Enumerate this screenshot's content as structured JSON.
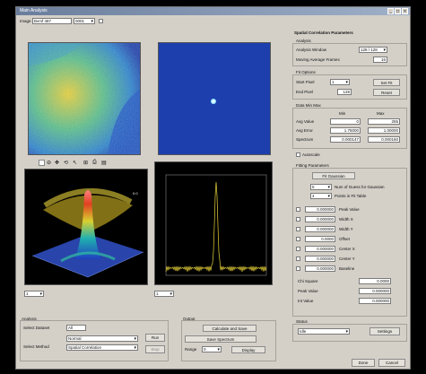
{
  "window": {
    "title": "Main Analysis"
  },
  "top": {
    "image_label": "Image",
    "image_name": "Bvmf 487",
    "frame_value": "0001",
    "info_text": ""
  },
  "spectrum": {
    "title": ""
  },
  "right": {
    "section_title": "Spatial Correlation Parameters",
    "analysis_title": "Analysis",
    "region_label": "Analysis Window",
    "region_value": "128 / 128",
    "moving_label": "Moving Average Frames",
    "moving_value": "16",
    "fit_title": "Fit Options",
    "fit_first_label": "Start Pixel",
    "fit_first_value": "1",
    "fit_count_label": "End Pixel",
    "fit_count_value": "128",
    "fit_btn1": "Set Fit",
    "fit_btn2": "Reset",
    "col_head_left": "Min",
    "col_head_right": "Max",
    "range_title": "Data Min Max",
    "rows": [
      {
        "label": "Avg Value",
        "min": "0",
        "max": "255"
      },
      {
        "label": "Avg Error",
        "min": "1.75000",
        "max": "1.00000"
      },
      {
        "label": "Spectrum",
        "min": "0.000147",
        "max": "0.000160"
      }
    ],
    "autoscale_label": "Autoscale",
    "fit_params_title": "Fitting Parameters",
    "gauss_btn": "Fit Gaussian",
    "num_label": "Num of Guess for Gaussian",
    "num_value": "5",
    "pts_label": "Points in Fit Table",
    "pts_value": "4",
    "params": [
      {
        "value": "0.000000",
        "label": "Peak Value"
      },
      {
        "value": "0.000000",
        "label": "Width X"
      },
      {
        "value": "0.000000",
        "label": "Width Y"
      },
      {
        "value": "0.0000",
        "label": "Offset"
      },
      {
        "value": "0.000000",
        "label": "Center X"
      },
      {
        "value": "0.000000",
        "label": "Center Y"
      },
      {
        "value": "0.000000",
        "label": "Baseline"
      }
    ],
    "stats": [
      {
        "label": "Chi Square",
        "value": "0.0000"
      },
      {
        "label": "Peak Value",
        "value": "0.000000"
      },
      {
        "label": "Int Value",
        "value": "0.000000"
      }
    ],
    "status_title": "Status",
    "status_value": "Idle",
    "settings_btn": "Settings"
  },
  "bottom": {
    "left_spin": "1",
    "mid_spin": "1",
    "analysis_title": "Analysis",
    "select_label": "Select Dataset",
    "select_value": "All",
    "select_method_label": "Select Method",
    "method_value1": "Normal",
    "method_value2": "Spatial Correlation",
    "run_btn": "Run",
    "stop_btn": "Stop",
    "output_title": "Output",
    "output_btn1": "Calculate and Save",
    "output_btn2": "Save Spectrum",
    "output_label": "Range",
    "output_value": "0",
    "output_btn3": "Display",
    "done_btn": "Done",
    "cancel_btn": "Cancel"
  },
  "toolbar": {
    "icons": [
      "zoom-in-icon",
      "zoom-out-icon",
      "pan-icon",
      "rotate-icon",
      "cursor-icon",
      "data-icon",
      "print-icon",
      "save-icon"
    ]
  },
  "colors": {
    "deep_blue": "#1d3fae",
    "surface_red": "#d22a20",
    "spectrum_yellow": "#e8d23a"
  }
}
